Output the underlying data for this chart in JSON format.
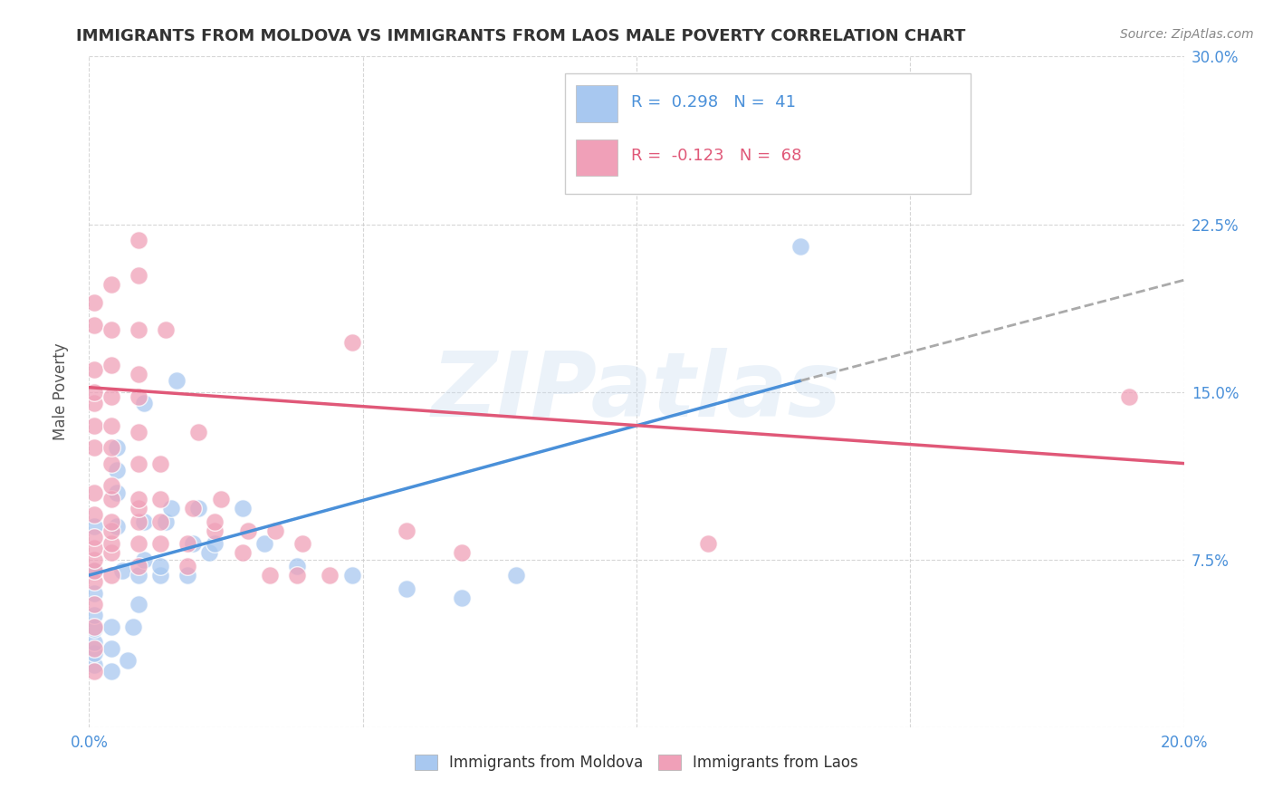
{
  "title": "IMMIGRANTS FROM MOLDOVA VS IMMIGRANTS FROM LAOS MALE POVERTY CORRELATION CHART",
  "source": "Source: ZipAtlas.com",
  "ylabel": "Male Poverty",
  "xlim": [
    0.0,
    0.2
  ],
  "ylim": [
    0.0,
    0.3
  ],
  "xticks": [
    0.0,
    0.05,
    0.1,
    0.15,
    0.2
  ],
  "yticks": [
    0.0,
    0.075,
    0.15,
    0.225,
    0.3
  ],
  "moldova_color": "#A8C8F0",
  "laos_color": "#F0A0B8",
  "moldova_R": 0.298,
  "moldova_N": 41,
  "laos_R": -0.123,
  "laos_N": 68,
  "background_color": "#ffffff",
  "grid_color": "#cccccc",
  "watermark": "ZIPatlas",
  "moldova_scatter": [
    [
      0.001,
      0.028
    ],
    [
      0.001,
      0.033
    ],
    [
      0.001,
      0.038
    ],
    [
      0.001,
      0.044
    ],
    [
      0.001,
      0.05
    ],
    [
      0.001,
      0.06
    ],
    [
      0.001,
      0.07
    ],
    [
      0.001,
      0.09
    ],
    [
      0.004,
      0.025
    ],
    [
      0.004,
      0.035
    ],
    [
      0.004,
      0.045
    ],
    [
      0.005,
      0.09
    ],
    [
      0.005,
      0.105
    ],
    [
      0.005,
      0.115
    ],
    [
      0.005,
      0.125
    ],
    [
      0.006,
      0.07
    ],
    [
      0.007,
      0.03
    ],
    [
      0.008,
      0.045
    ],
    [
      0.009,
      0.055
    ],
    [
      0.009,
      0.068
    ],
    [
      0.01,
      0.075
    ],
    [
      0.01,
      0.092
    ],
    [
      0.01,
      0.145
    ],
    [
      0.013,
      0.068
    ],
    [
      0.013,
      0.072
    ],
    [
      0.014,
      0.092
    ],
    [
      0.015,
      0.098
    ],
    [
      0.016,
      0.155
    ],
    [
      0.018,
      0.068
    ],
    [
      0.019,
      0.082
    ],
    [
      0.02,
      0.098
    ],
    [
      0.022,
      0.078
    ],
    [
      0.023,
      0.082
    ],
    [
      0.028,
      0.098
    ],
    [
      0.032,
      0.082
    ],
    [
      0.038,
      0.072
    ],
    [
      0.048,
      0.068
    ],
    [
      0.058,
      0.062
    ],
    [
      0.068,
      0.058
    ],
    [
      0.078,
      0.068
    ],
    [
      0.13,
      0.215
    ]
  ],
  "laos_scatter": [
    [
      0.001,
      0.025
    ],
    [
      0.001,
      0.035
    ],
    [
      0.001,
      0.045
    ],
    [
      0.001,
      0.055
    ],
    [
      0.001,
      0.065
    ],
    [
      0.001,
      0.07
    ],
    [
      0.001,
      0.075
    ],
    [
      0.001,
      0.08
    ],
    [
      0.001,
      0.085
    ],
    [
      0.001,
      0.095
    ],
    [
      0.001,
      0.105
    ],
    [
      0.001,
      0.125
    ],
    [
      0.001,
      0.135
    ],
    [
      0.001,
      0.145
    ],
    [
      0.001,
      0.15
    ],
    [
      0.001,
      0.16
    ],
    [
      0.001,
      0.18
    ],
    [
      0.001,
      0.19
    ],
    [
      0.004,
      0.068
    ],
    [
      0.004,
      0.078
    ],
    [
      0.004,
      0.082
    ],
    [
      0.004,
      0.088
    ],
    [
      0.004,
      0.092
    ],
    [
      0.004,
      0.102
    ],
    [
      0.004,
      0.108
    ],
    [
      0.004,
      0.118
    ],
    [
      0.004,
      0.125
    ],
    [
      0.004,
      0.135
    ],
    [
      0.004,
      0.148
    ],
    [
      0.004,
      0.162
    ],
    [
      0.004,
      0.178
    ],
    [
      0.004,
      0.198
    ],
    [
      0.009,
      0.072
    ],
    [
      0.009,
      0.082
    ],
    [
      0.009,
      0.092
    ],
    [
      0.009,
      0.098
    ],
    [
      0.009,
      0.102
    ],
    [
      0.009,
      0.118
    ],
    [
      0.009,
      0.132
    ],
    [
      0.009,
      0.148
    ],
    [
      0.009,
      0.158
    ],
    [
      0.009,
      0.178
    ],
    [
      0.009,
      0.202
    ],
    [
      0.009,
      0.218
    ],
    [
      0.013,
      0.082
    ],
    [
      0.013,
      0.092
    ],
    [
      0.013,
      0.102
    ],
    [
      0.013,
      0.118
    ],
    [
      0.014,
      0.178
    ],
    [
      0.018,
      0.072
    ],
    [
      0.018,
      0.082
    ],
    [
      0.019,
      0.098
    ],
    [
      0.02,
      0.132
    ],
    [
      0.023,
      0.088
    ],
    [
      0.023,
      0.092
    ],
    [
      0.024,
      0.102
    ],
    [
      0.028,
      0.078
    ],
    [
      0.029,
      0.088
    ],
    [
      0.033,
      0.068
    ],
    [
      0.034,
      0.088
    ],
    [
      0.038,
      0.068
    ],
    [
      0.039,
      0.082
    ],
    [
      0.044,
      0.068
    ],
    [
      0.048,
      0.172
    ],
    [
      0.058,
      0.088
    ],
    [
      0.068,
      0.078
    ],
    [
      0.113,
      0.082
    ],
    [
      0.19,
      0.148
    ]
  ],
  "moldova_trendline_solid": [
    [
      0.0,
      0.068
    ],
    [
      0.13,
      0.155
    ]
  ],
  "moldova_trendline_dashed": [
    [
      0.13,
      0.155
    ],
    [
      0.2,
      0.2
    ]
  ],
  "laos_trendline": [
    [
      0.0,
      0.152
    ],
    [
      0.2,
      0.118
    ]
  ],
  "legend_labels": [
    "Immigrants from Moldova",
    "Immigrants from Laos"
  ]
}
